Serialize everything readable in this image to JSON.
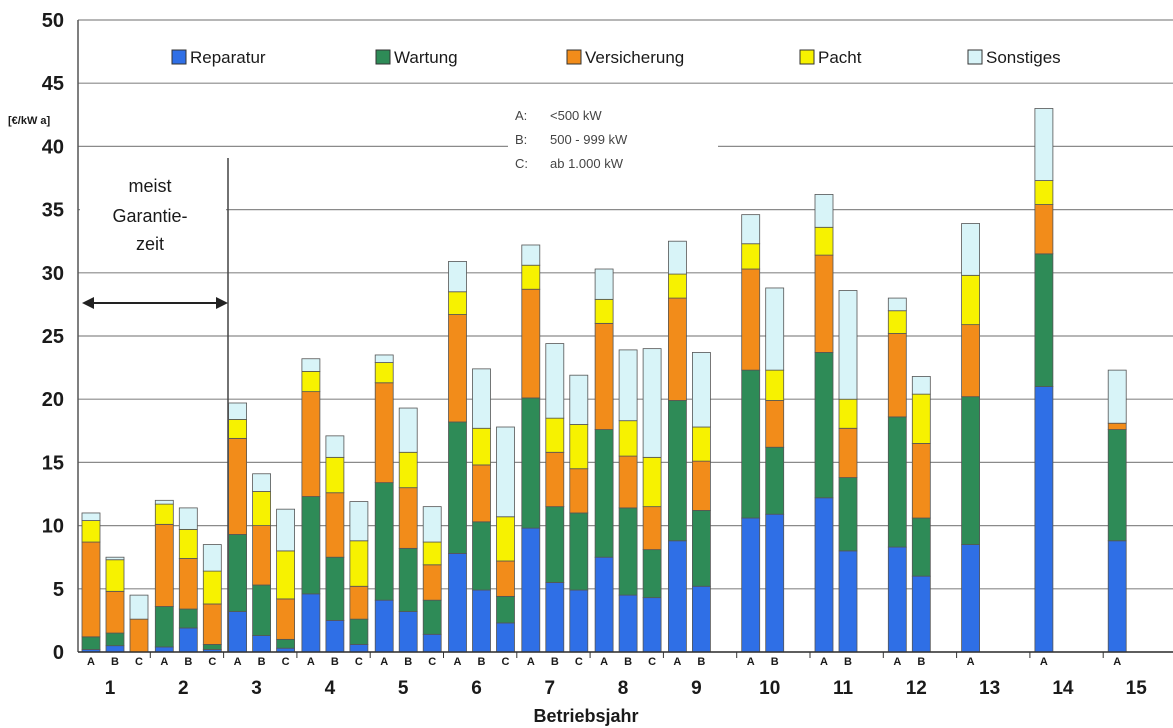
{
  "chart_data": {
    "type": "bar",
    "stacked": true,
    "ylabel": "[€/kW a]",
    "xlabel": "Betriebsjahr",
    "ylim": [
      0,
      50
    ],
    "yticks": [
      0,
      5,
      10,
      15,
      20,
      25,
      30,
      35,
      40,
      45,
      50
    ],
    "grid": true,
    "legend_position": "top",
    "series_order": [
      "Reparatur",
      "Wartung",
      "Versicherung",
      "Pacht",
      "Sonstiges"
    ],
    "series": [
      {
        "name": "Reparatur",
        "color": "#2f6fe6"
      },
      {
        "name": "Wartung",
        "color": "#2e8b57"
      },
      {
        "name": "Versicherung",
        "color": "#f28c1a"
      },
      {
        "name": "Pacht",
        "color": "#f7f200"
      },
      {
        "name": "Sonstiges",
        "color": "#d8f4f8"
      }
    ],
    "size_key": [
      {
        "letter": "A:",
        "text": "<500 kW"
      },
      {
        "letter": "B:",
        "text": "500 - 999 kW"
      },
      {
        "letter": "C:",
        "text": "ab 1.000 kW"
      }
    ],
    "annotation": {
      "line1": "meist",
      "line2": "Garantie-",
      "line3": "zeit"
    },
    "groups": [
      {
        "year": "1",
        "bars": [
          {
            "class": "A",
            "values": [
              0.2,
              1.0,
              7.5,
              1.7,
              0.6
            ]
          },
          {
            "class": "B",
            "values": [
              0.5,
              1.0,
              3.3,
              2.5,
              0.2
            ]
          },
          {
            "class": "C",
            "values": [
              0.0,
              0.0,
              2.6,
              0.0,
              1.9
            ]
          }
        ]
      },
      {
        "year": "2",
        "bars": [
          {
            "class": "A",
            "values": [
              0.4,
              3.2,
              6.5,
              1.6,
              0.3
            ]
          },
          {
            "class": "B",
            "values": [
              1.9,
              1.5,
              4.0,
              2.3,
              1.7
            ]
          },
          {
            "class": "C",
            "values": [
              0.2,
              0.4,
              3.2,
              2.6,
              2.1
            ]
          }
        ]
      },
      {
        "year": "3",
        "bars": [
          {
            "class": "A",
            "values": [
              3.2,
              6.1,
              7.6,
              1.5,
              1.3
            ]
          },
          {
            "class": "B",
            "values": [
              1.3,
              4.0,
              4.7,
              2.7,
              1.4
            ]
          },
          {
            "class": "C",
            "values": [
              0.3,
              0.7,
              3.2,
              3.8,
              3.3
            ]
          }
        ]
      },
      {
        "year": "4",
        "bars": [
          {
            "class": "A",
            "values": [
              4.6,
              7.7,
              8.3,
              1.6,
              1.0
            ]
          },
          {
            "class": "B",
            "values": [
              2.5,
              5.0,
              5.1,
              2.8,
              1.7
            ]
          },
          {
            "class": "C",
            "values": [
              0.6,
              2.0,
              2.6,
              3.6,
              3.1
            ]
          }
        ]
      },
      {
        "year": "5",
        "bars": [
          {
            "class": "A",
            "values": [
              4.1,
              9.3,
              7.9,
              1.6,
              0.6
            ]
          },
          {
            "class": "B",
            "values": [
              3.2,
              5.0,
              4.8,
              2.8,
              3.5
            ]
          },
          {
            "class": "C",
            "values": [
              1.4,
              2.7,
              2.8,
              1.8,
              2.8
            ]
          }
        ]
      },
      {
        "year": "6",
        "bars": [
          {
            "class": "A",
            "values": [
              7.8,
              10.4,
              8.5,
              1.8,
              2.4
            ]
          },
          {
            "class": "B",
            "values": [
              4.9,
              5.4,
              4.5,
              2.9,
              4.7
            ]
          },
          {
            "class": "C",
            "values": [
              2.3,
              2.1,
              2.8,
              3.5,
              7.1
            ]
          }
        ]
      },
      {
        "year": "7",
        "bars": [
          {
            "class": "A",
            "values": [
              9.8,
              10.3,
              8.6,
              1.9,
              1.6
            ]
          },
          {
            "class": "B",
            "values": [
              5.5,
              6.0,
              4.3,
              2.7,
              5.9
            ]
          },
          {
            "class": "C",
            "values": [
              4.9,
              6.1,
              3.5,
              3.5,
              3.9
            ]
          }
        ]
      },
      {
        "year": "8",
        "bars": [
          {
            "class": "A",
            "values": [
              7.5,
              10.1,
              8.4,
              1.9,
              2.4
            ]
          },
          {
            "class": "B",
            "values": [
              4.5,
              6.9,
              4.1,
              2.8,
              5.6
            ]
          },
          {
            "class": "C",
            "values": [
              4.3,
              3.8,
              3.4,
              3.9,
              8.6
            ]
          }
        ]
      },
      {
        "year": "9",
        "bars": [
          {
            "class": "A",
            "values": [
              8.8,
              11.1,
              8.1,
              1.9,
              2.6
            ]
          },
          {
            "class": "B",
            "values": [
              5.2,
              6.0,
              3.9,
              2.7,
              5.9
            ]
          }
        ]
      },
      {
        "year": "10",
        "bars": [
          {
            "class": "A",
            "values": [
              10.6,
              11.7,
              8.0,
              2.0,
              2.3
            ]
          },
          {
            "class": "B",
            "values": [
              10.9,
              5.3,
              3.7,
              2.4,
              6.5
            ]
          }
        ]
      },
      {
        "year": "11",
        "bars": [
          {
            "class": "A",
            "values": [
              12.2,
              11.5,
              7.7,
              2.2,
              2.6
            ]
          },
          {
            "class": "B",
            "values": [
              8.0,
              5.8,
              3.9,
              2.3,
              8.6
            ]
          }
        ]
      },
      {
        "year": "12",
        "bars": [
          {
            "class": "A",
            "values": [
              8.3,
              10.3,
              6.6,
              1.8,
              1.0
            ]
          },
          {
            "class": "B",
            "values": [
              6.0,
              4.6,
              5.9,
              3.9,
              1.4
            ]
          }
        ]
      },
      {
        "year": "13",
        "bars": [
          {
            "class": "A",
            "values": [
              8.5,
              11.7,
              5.7,
              3.9,
              4.1
            ]
          }
        ]
      },
      {
        "year": "14",
        "bars": [
          {
            "class": "A",
            "values": [
              21.0,
              10.5,
              3.9,
              1.9,
              5.7
            ]
          }
        ]
      },
      {
        "year": "15",
        "bars": [
          {
            "class": "A",
            "values": [
              8.8,
              8.8,
              0.5,
              0.0,
              4.2
            ]
          }
        ]
      }
    ]
  }
}
